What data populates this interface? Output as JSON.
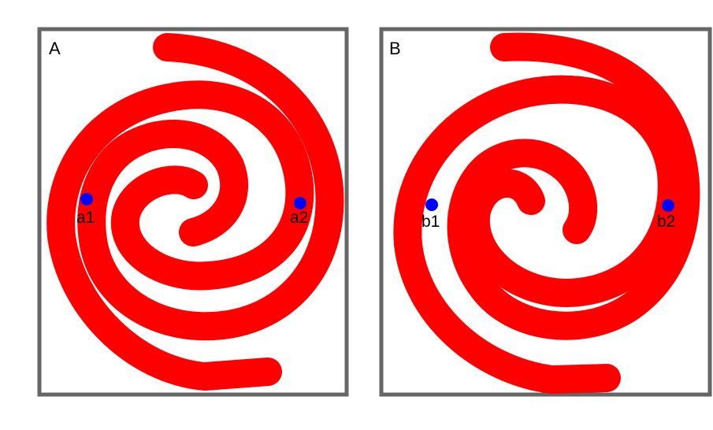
{
  "colors": {
    "frame": "#666666",
    "spiral": "#ff0000",
    "point": "#0000ff",
    "background": "#ffffff"
  },
  "panels": [
    {
      "label": "A",
      "points": [
        {
          "label": "a1"
        },
        {
          "label": "a2"
        }
      ]
    },
    {
      "label": "B",
      "points": [
        {
          "label": "b1"
        },
        {
          "label": "b2"
        }
      ]
    }
  ]
}
